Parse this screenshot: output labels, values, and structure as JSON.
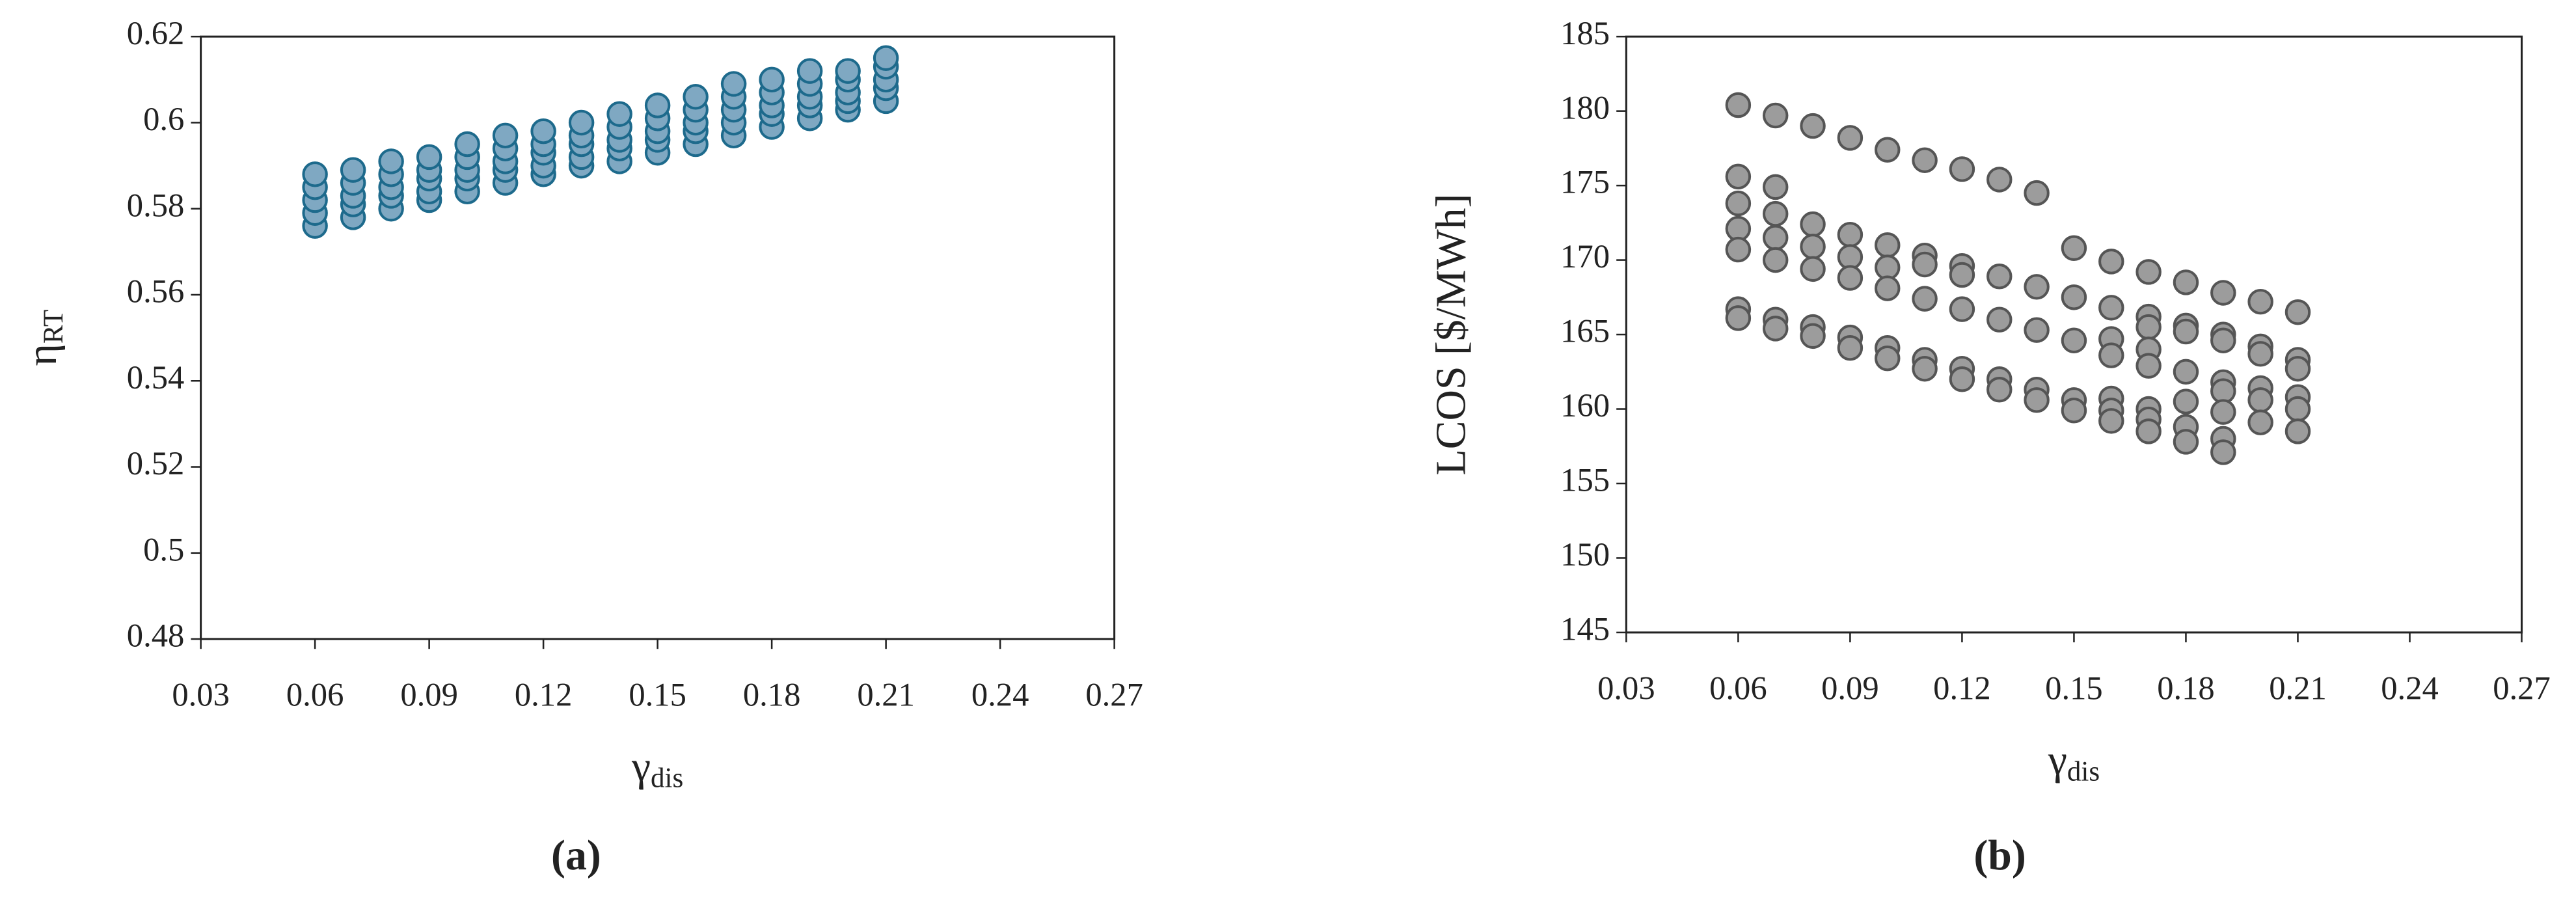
{
  "chart_data": [
    {
      "type": "scatter",
      "caption": "(a)",
      "ylabel": "η",
      "ylabel_sub": "RT",
      "xlabel": "γ",
      "xlabel_sub": "dis",
      "xlim": [
        0.03,
        0.27
      ],
      "xticks": [
        0.03,
        0.06,
        0.09,
        0.12,
        0.15,
        0.18,
        0.21,
        0.24,
        0.27
      ],
      "ylim": [
        0.48,
        0.62
      ],
      "yticks": [
        0.48,
        0.5,
        0.52,
        0.54,
        0.56,
        0.58,
        0.6,
        0.62
      ],
      "grid": false,
      "x": [
        0.06,
        0.06,
        0.06,
        0.06,
        0.06,
        0.07,
        0.07,
        0.07,
        0.07,
        0.07,
        0.08,
        0.08,
        0.08,
        0.08,
        0.08,
        0.09,
        0.09,
        0.09,
        0.09,
        0.09,
        0.1,
        0.1,
        0.1,
        0.1,
        0.1,
        0.11,
        0.11,
        0.11,
        0.11,
        0.11,
        0.12,
        0.12,
        0.12,
        0.12,
        0.12,
        0.13,
        0.13,
        0.13,
        0.13,
        0.13,
        0.14,
        0.14,
        0.14,
        0.14,
        0.14,
        0.15,
        0.15,
        0.15,
        0.15,
        0.15,
        0.16,
        0.16,
        0.16,
        0.16,
        0.16,
        0.17,
        0.17,
        0.17,
        0.17,
        0.17,
        0.18,
        0.18,
        0.18,
        0.18,
        0.18,
        0.19,
        0.19,
        0.19,
        0.19,
        0.19,
        0.2,
        0.2,
        0.2,
        0.2,
        0.2,
        0.21,
        0.21,
        0.21,
        0.21,
        0.21
      ],
      "series": [
        {
          "color": "#7fa8c2",
          "edge": "#1d6a8c",
          "values": [
            0.576,
            0.579,
            0.582,
            0.585,
            0.588,
            0.578,
            0.581,
            0.583,
            0.586,
            0.589,
            0.58,
            0.583,
            0.585,
            0.588,
            0.591,
            0.582,
            0.584,
            0.587,
            0.589,
            0.592,
            0.584,
            0.587,
            0.589,
            0.592,
            0.595,
            0.586,
            0.589,
            0.591,
            0.594,
            0.597,
            0.588,
            0.59,
            0.593,
            0.595,
            0.598,
            0.59,
            0.592,
            0.595,
            0.597,
            0.6,
            0.591,
            0.594,
            0.596,
            0.599,
            0.602,
            0.593,
            0.596,
            0.598,
            0.601,
            0.604,
            0.595,
            0.598,
            0.6,
            0.603,
            0.606,
            0.597,
            0.6,
            0.603,
            0.606,
            0.609,
            0.599,
            0.602,
            0.604,
            0.607,
            0.61,
            0.601,
            0.604,
            0.606,
            0.609,
            0.612,
            0.603,
            0.605,
            0.607,
            0.61,
            0.612,
            0.605,
            0.608,
            0.61,
            0.613,
            0.615
          ]
        }
      ]
    },
    {
      "type": "scatter",
      "caption": "(b)",
      "ylabel": "LCOS [$/MWh]",
      "xlabel": "γ",
      "xlabel_sub": "dis",
      "xlim": [
        0.03,
        0.27
      ],
      "xticks": [
        0.03,
        0.06,
        0.09,
        0.12,
        0.15,
        0.18,
        0.21,
        0.24,
        0.27
      ],
      "ylim": [
        145,
        185
      ],
      "yticks": [
        145,
        150,
        155,
        160,
        165,
        170,
        175,
        180,
        185
      ],
      "grid": false,
      "x": [
        0.06,
        0.06,
        0.06,
        0.06,
        0.06,
        0.06,
        0.06,
        0.07,
        0.07,
        0.07,
        0.07,
        0.07,
        0.07,
        0.07,
        0.08,
        0.08,
        0.08,
        0.08,
        0.08,
        0.08,
        0.09,
        0.09,
        0.09,
        0.09,
        0.09,
        0.09,
        0.1,
        0.1,
        0.1,
        0.1,
        0.1,
        0.1,
        0.11,
        0.11,
        0.11,
        0.11,
        0.11,
        0.11,
        0.12,
        0.12,
        0.12,
        0.12,
        0.12,
        0.12,
        0.13,
        0.13,
        0.13,
        0.13,
        0.13,
        0.14,
        0.14,
        0.14,
        0.14,
        0.14,
        0.15,
        0.15,
        0.15,
        0.15,
        0.15,
        0.16,
        0.16,
        0.16,
        0.16,
        0.16,
        0.16,
        0.16,
        0.17,
        0.17,
        0.17,
        0.17,
        0.17,
        0.17,
        0.17,
        0.17,
        0.18,
        0.18,
        0.18,
        0.18,
        0.18,
        0.18,
        0.18,
        0.19,
        0.19,
        0.19,
        0.19,
        0.19,
        0.19,
        0.19,
        0.19,
        0.2,
        0.2,
        0.2,
        0.2,
        0.2,
        0.2,
        0.21,
        0.21,
        0.21,
        0.21,
        0.21,
        0.21
      ],
      "series": [
        {
          "color": "#9c9c9c",
          "edge": "#555555",
          "values": [
            180.4,
            175.6,
            173.8,
            172.1,
            170.7,
            166.7,
            166.1,
            179.7,
            174.9,
            173.1,
            171.5,
            170.0,
            166.0,
            165.4,
            179.0,
            172.4,
            170.9,
            169.4,
            165.5,
            164.9,
            178.2,
            171.7,
            170.2,
            168.8,
            164.8,
            164.1,
            177.4,
            171.0,
            169.5,
            168.1,
            164.1,
            163.4,
            176.7,
            170.3,
            169.7,
            167.4,
            163.3,
            162.7,
            176.1,
            169.6,
            169.0,
            166.7,
            162.7,
            162.0,
            175.4,
            168.9,
            166.0,
            162.0,
            161.3,
            174.5,
            168.2,
            165.3,
            161.3,
            160.6,
            170.8,
            167.5,
            164.6,
            160.6,
            159.9,
            169.9,
            166.8,
            164.7,
            163.6,
            160.7,
            159.9,
            159.2,
            169.2,
            166.2,
            165.5,
            164.0,
            162.9,
            160.0,
            159.3,
            158.5,
            168.5,
            165.6,
            165.2,
            162.5,
            160.5,
            158.8,
            157.8,
            167.8,
            165.0,
            164.6,
            161.8,
            161.2,
            159.8,
            158.0,
            157.1,
            167.2,
            164.2,
            163.7,
            161.4,
            160.6,
            159.1,
            166.5,
            163.3,
            162.7,
            160.8,
            160.0,
            158.5
          ]
        }
      ]
    }
  ]
}
